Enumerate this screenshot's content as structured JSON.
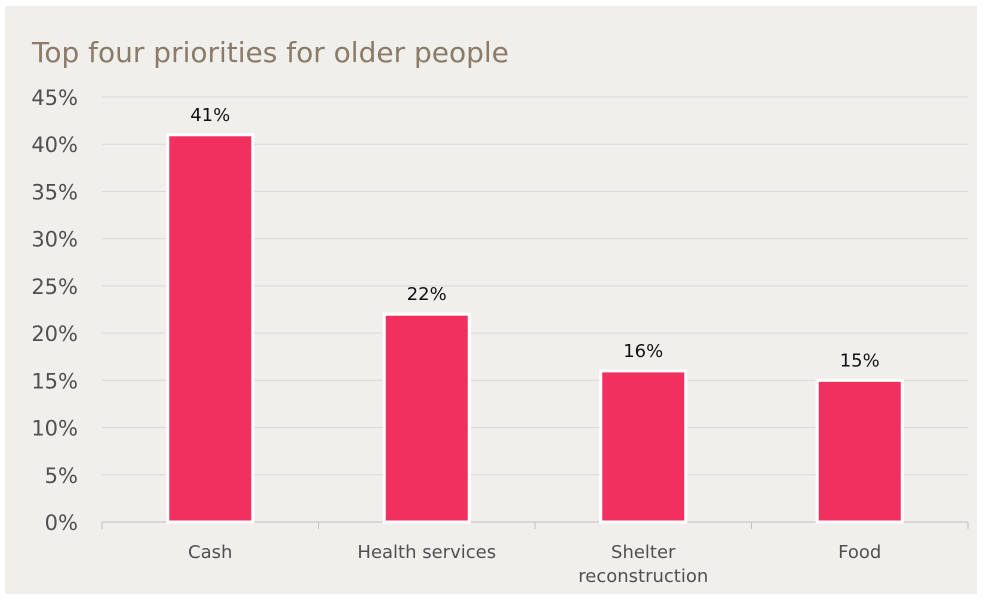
{
  "chart_data": {
    "type": "bar",
    "title": "Top four priorities for older people",
    "categories": [
      [
        "Cash"
      ],
      [
        "Health services"
      ],
      [
        "Shelter",
        "reconstruction"
      ],
      [
        "Food"
      ]
    ],
    "values": [
      41,
      22,
      16,
      15
    ],
    "data_labels": [
      "41%",
      "22%",
      "16%",
      "15%"
    ],
    "yticks": [
      "0%",
      "5%",
      "10%",
      "15%",
      "20%",
      "25%",
      "30%",
      "35%",
      "40%",
      "45%"
    ],
    "ylim": [
      0,
      45
    ],
    "ystep": 5,
    "grid": true,
    "legend": "none",
    "bar_color": "#f2305f",
    "bar_border_color": "#ffffff",
    "grid_color": "#d9d9d9",
    "axis_color": "#bfbfbf"
  }
}
